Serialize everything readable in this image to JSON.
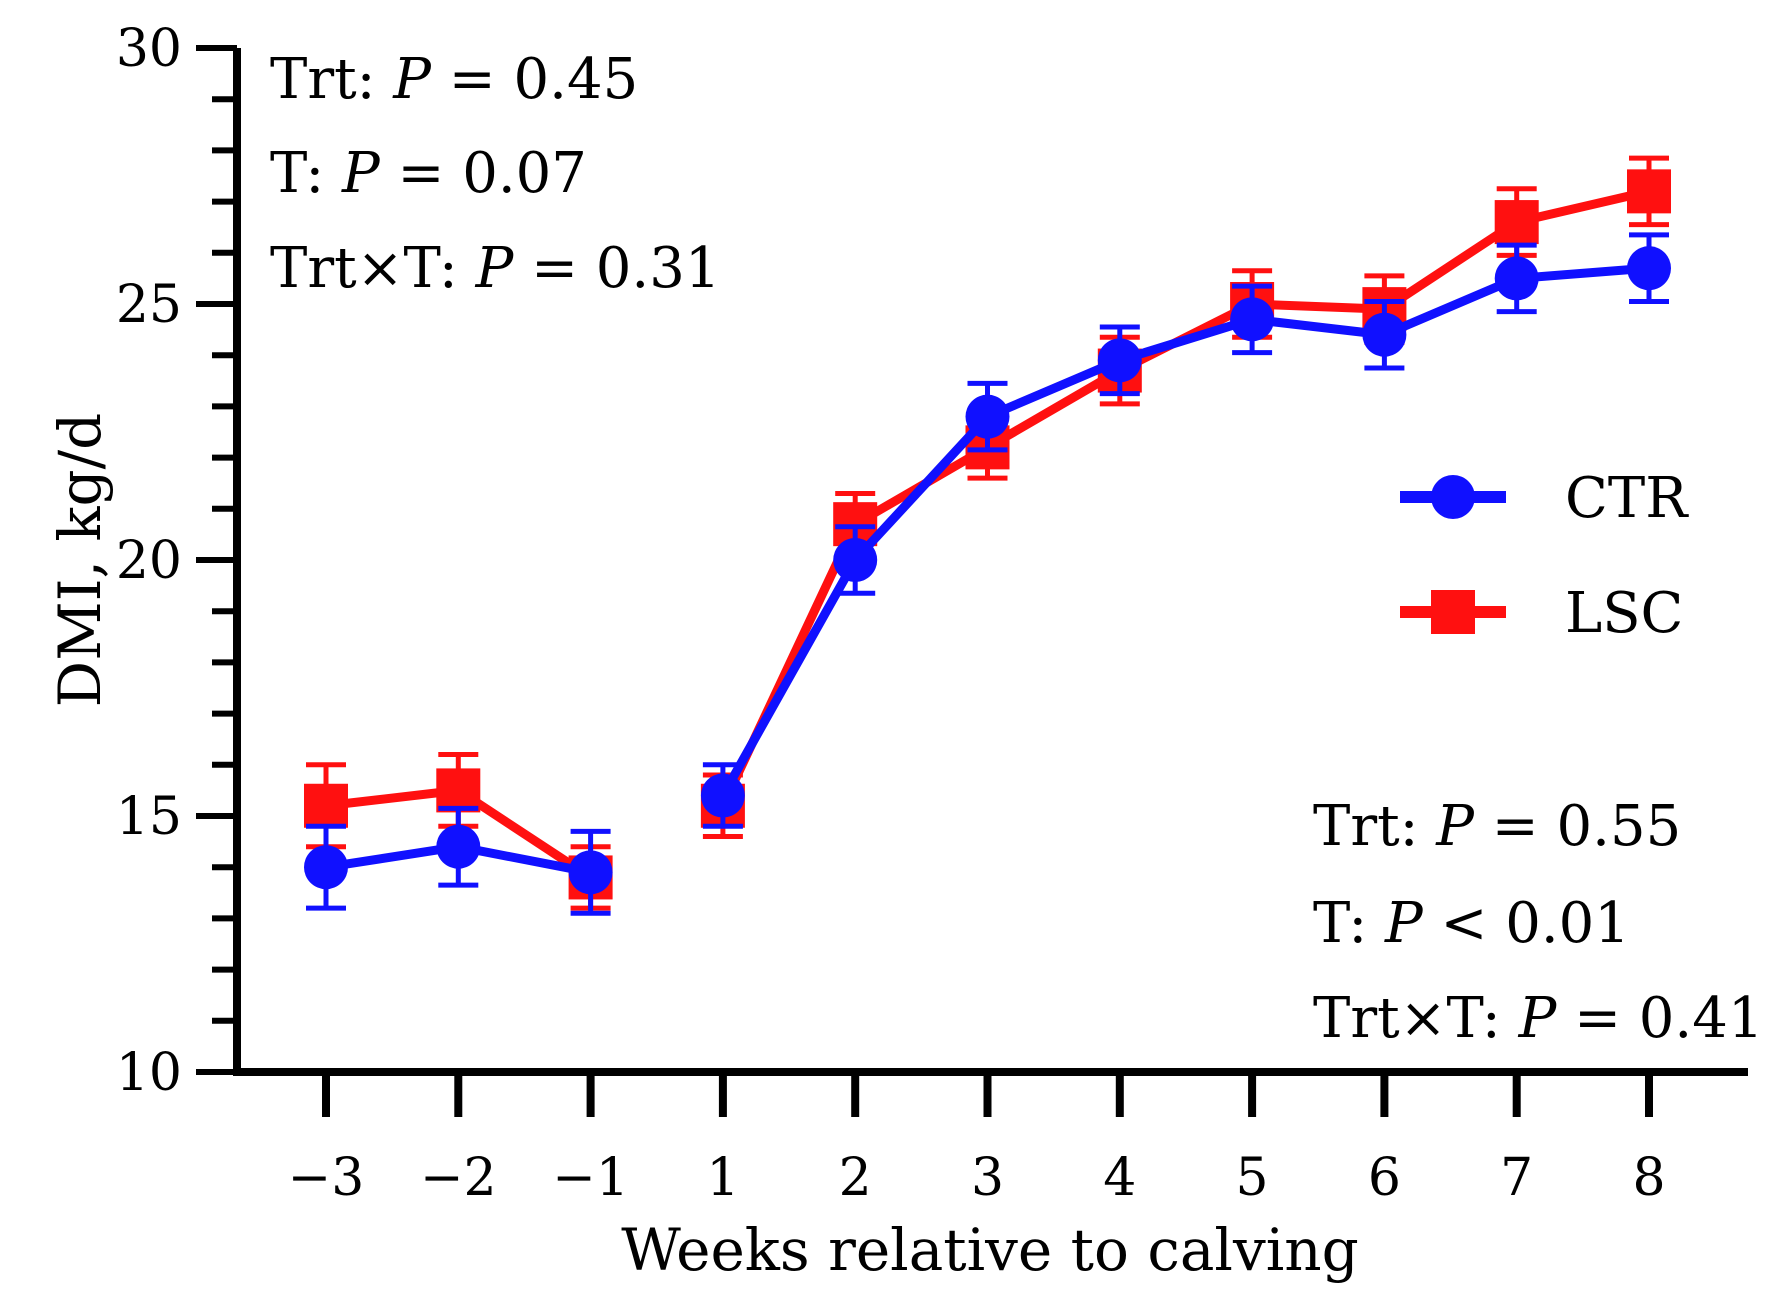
{
  "chart_data": {
    "type": "line",
    "xlabel": "Weeks relative to calving",
    "ylabel": "DMI, kg/d",
    "categories": [
      "−3",
      "−2",
      "−1",
      "1",
      "2",
      "3",
      "4",
      "5",
      "6",
      "7",
      "8"
    ],
    "ylim": [
      10,
      30
    ],
    "yticks": [
      "10",
      "15",
      "20",
      "25",
      "30"
    ],
    "series": [
      {
        "name": "CTR",
        "color": "#1010ff",
        "marker": "circle",
        "values": [
          14.0,
          14.4,
          13.9,
          15.4,
          20.0,
          22.8,
          23.9,
          24.7,
          24.4,
          25.5,
          25.7
        ],
        "errors": [
          0.8,
          0.75,
          0.8,
          0.6,
          0.65,
          0.65,
          0.65,
          0.65,
          0.65,
          0.65,
          0.65
        ]
      },
      {
        "name": "LSC",
        "color": "#ff1010",
        "marker": "square",
        "values": [
          15.2,
          15.5,
          13.8,
          15.2,
          20.7,
          22.2,
          23.7,
          25.0,
          24.9,
          26.6,
          27.2
        ],
        "errors": [
          0.8,
          0.7,
          0.6,
          0.6,
          0.6,
          0.6,
          0.65,
          0.65,
          0.65,
          0.65,
          0.65
        ]
      }
    ],
    "segments": [
      [
        0,
        2
      ],
      [
        3,
        10
      ]
    ],
    "legend_position": "right"
  },
  "annotations": {
    "prepartum": {
      "trt_prefix": "Trt: ",
      "trt_p": "P",
      "trt_value": " = 0.45",
      "t_prefix": "T: ",
      "t_p": "P",
      "t_value": " = 0.07",
      "int_prefix": "Trt×T: ",
      "int_p": "P",
      "int_value": " = 0.31"
    },
    "postpartum": {
      "trt_prefix": "Trt: ",
      "trt_p": "P",
      "trt_value": " = 0.55",
      "t_prefix": "T: ",
      "t_p": "P",
      "t_value": " < 0.01",
      "int_prefix": "Trt×T: ",
      "int_p": "P",
      "int_value": " = 0.41"
    }
  }
}
